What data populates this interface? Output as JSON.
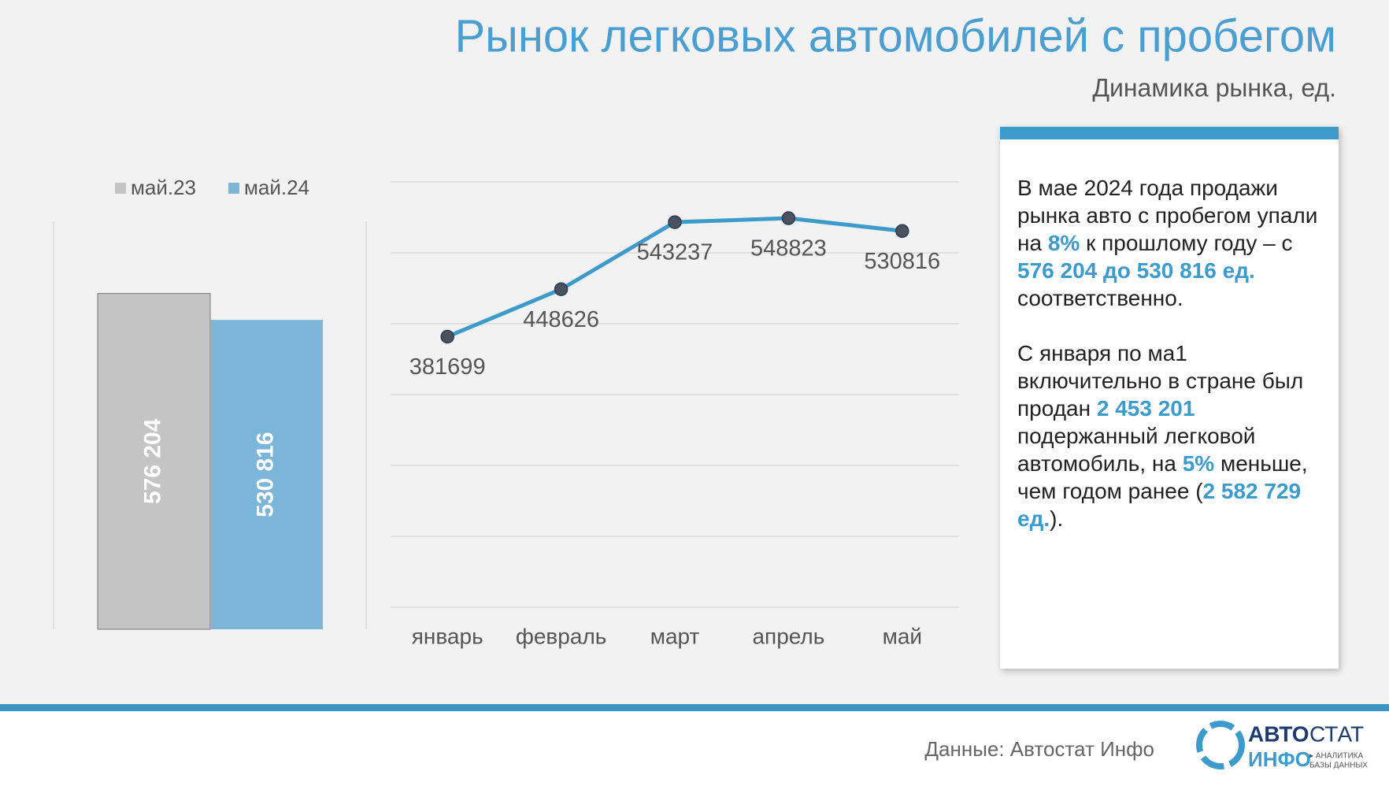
{
  "slide": {
    "title": "Рынок легковых автомобилей с пробегом",
    "subtitle": "Динамика рынка, ед.",
    "panel": [
      [
        {
          "text": "В мае 2024 года продажи рынка авто с пробегом упали на "
        },
        {
          "text": "8%",
          "highlight": true
        },
        {
          "text": " к прошлому году – с "
        },
        {
          "text": "576 204 до 530 816 ед.",
          "highlight": true
        },
        {
          "text": " соответственно."
        }
      ],
      [
        {
          "text": "С января по ма1 включительно в стране был продан "
        },
        {
          "text": "2 453 201",
          "highlight": true
        },
        {
          "text": " подержанный легковой автомобиль, на "
        },
        {
          "text": "5%",
          "highlight": true
        },
        {
          "text": " меньше, чем годом ранее ("
        },
        {
          "text": "2 582 729 ед.",
          "highlight": true
        },
        {
          "text": ")."
        }
      ]
    ],
    "source": "Данные: Автостат Инфо",
    "logo": {
      "line1a": "АВТО",
      "line1b": "СТАТ",
      "line2": "ИНФО",
      "tag1": "▸ АНАЛИТИКА",
      "tag2": "БАЗЫ ДАННЫХ"
    }
  },
  "chart_data": [
    {
      "type": "bar",
      "categories": [
        null
      ],
      "ylim": [
        0,
        700000
      ],
      "series": [
        {
          "name": "май.23",
          "color": "#c4c4c4",
          "values": [
            576204
          ],
          "value_labels": [
            "576 204"
          ]
        },
        {
          "name": "май.24",
          "color": "#7bb5d7",
          "values": [
            530816
          ],
          "value_labels": [
            "530 816"
          ]
        }
      ]
    },
    {
      "type": "line",
      "categories": [
        "январь",
        "февраль",
        "март",
        "апрель",
        "май"
      ],
      "values": [
        381699,
        448626,
        543237,
        548823,
        530816
      ],
      "color": "#3d9bcb",
      "ylim": [
        0,
        600000
      ],
      "yticks": [
        0,
        100000,
        200000,
        300000,
        400000,
        500000,
        600000
      ],
      "grid": true,
      "tick_labels": false
    }
  ]
}
